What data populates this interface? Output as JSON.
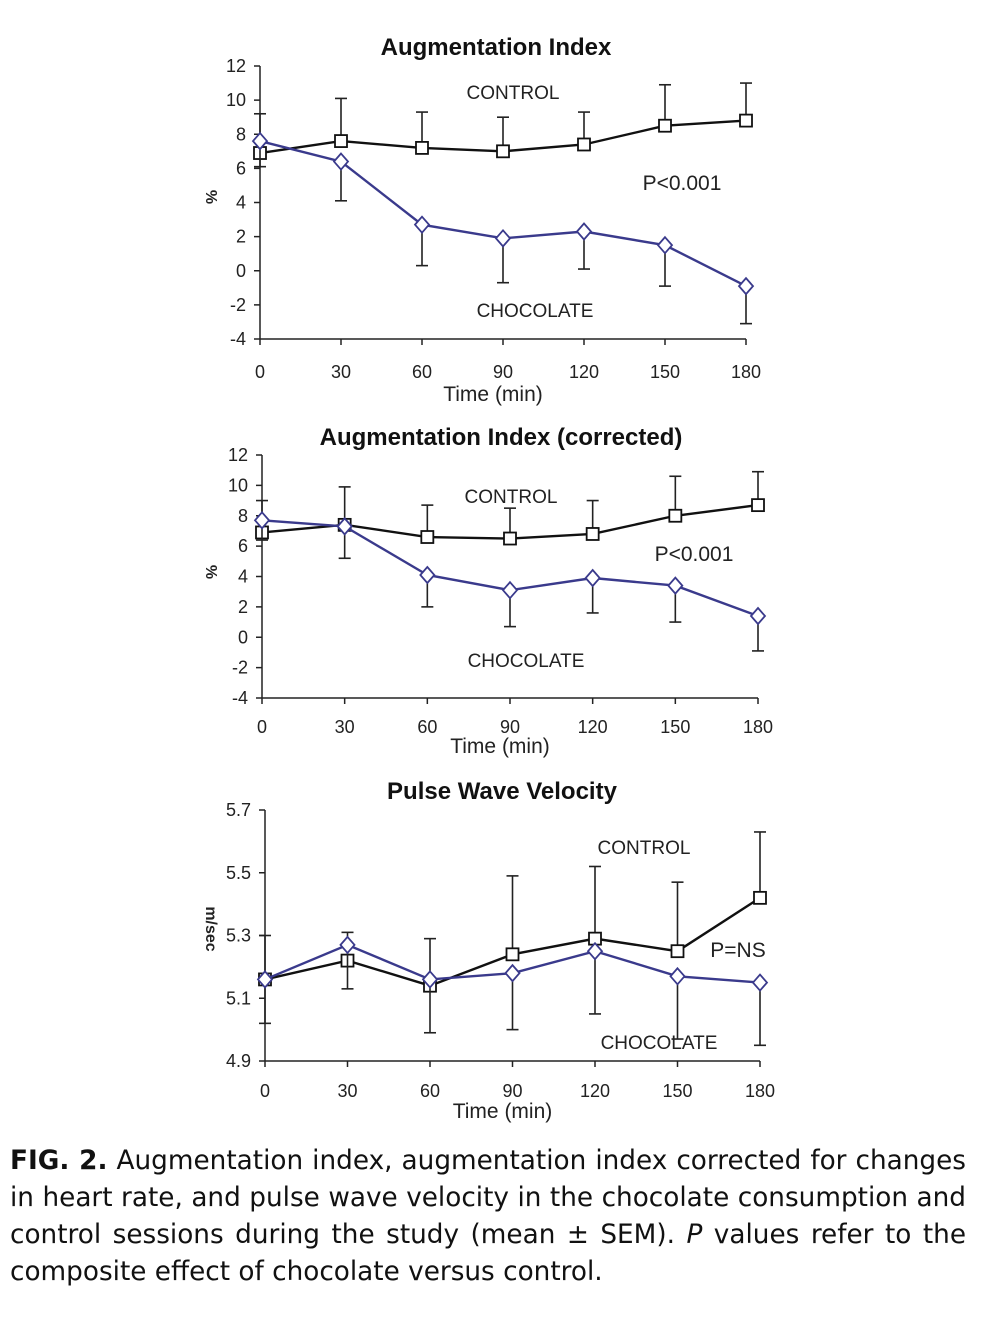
{
  "chart_data": [
    {
      "type": "line",
      "title": "Augmentation Index",
      "xlabel": "Time (min)",
      "ylabel": "%",
      "x": [
        0,
        30,
        60,
        90,
        120,
        150,
        180
      ],
      "xticks": [
        "0",
        "30",
        "60",
        "90",
        "120",
        "150",
        "180"
      ],
      "ylim": [
        -4,
        12
      ],
      "yticks": [
        "12",
        "10",
        "8",
        "6",
        "4",
        "2",
        "0",
        "-2",
        "-4"
      ],
      "series": [
        {
          "name": "CONTROL",
          "color": "#111111",
          "marker": "square",
          "values": [
            6.9,
            7.6,
            7.2,
            7.0,
            7.4,
            8.5,
            8.8
          ],
          "errors": [
            2.3,
            2.5,
            2.1,
            2.0,
            1.9,
            2.4,
            2.2
          ]
        },
        {
          "name": "CHOCOLATE",
          "color": "#3a3a8c",
          "marker": "diamond",
          "values": [
            7.6,
            6.4,
            2.7,
            1.9,
            2.3,
            1.5,
            -0.9
          ],
          "errors": [
            1.5,
            2.3,
            2.4,
            2.6,
            2.2,
            2.4,
            2.2
          ]
        }
      ],
      "annotations": {
        "control_label": "CONTROL",
        "chocolate_label": "CHOCOLATE",
        "p_value": "P<0.001"
      }
    },
    {
      "type": "line",
      "title": "Augmentation Index (corrected)",
      "xlabel": "Time (min)",
      "ylabel": "%",
      "x": [
        0,
        30,
        60,
        90,
        120,
        150,
        180
      ],
      "xticks": [
        "0",
        "30",
        "60",
        "90",
        "120",
        "150",
        "180"
      ],
      "ylim": [
        -4,
        12
      ],
      "yticks": [
        "12",
        "10",
        "8",
        "6",
        "4",
        "2",
        "0",
        "-2",
        "-4"
      ],
      "series": [
        {
          "name": "CONTROL",
          "color": "#111111",
          "marker": "square",
          "values": [
            6.9,
            7.4,
            6.6,
            6.5,
            6.8,
            8.0,
            8.7
          ],
          "errors": [
            2.1,
            2.5,
            2.1,
            2.0,
            2.2,
            2.6,
            2.2
          ]
        },
        {
          "name": "CHOCOLATE",
          "color": "#3a3a8c",
          "marker": "diamond",
          "values": [
            7.7,
            7.3,
            4.1,
            3.1,
            3.9,
            3.4,
            1.4
          ],
          "errors": [
            1.3,
            2.1,
            2.1,
            2.4,
            2.3,
            2.4,
            2.3
          ]
        }
      ],
      "annotations": {
        "control_label": "CONTROL",
        "chocolate_label": "CHOCOLATE",
        "p_value": "P<0.001"
      }
    },
    {
      "type": "line",
      "title": "Pulse Wave Velocity",
      "xlabel": "Time (min)",
      "ylabel": "m/sec",
      "x": [
        0,
        30,
        60,
        90,
        120,
        150,
        180
      ],
      "xticks": [
        "0",
        "30",
        "60",
        "90",
        "120",
        "150",
        "180"
      ],
      "ylim": [
        4.9,
        5.7
      ],
      "yticks": [
        "5.7",
        "5.5",
        "5.3",
        "5.1",
        "4.9"
      ],
      "series": [
        {
          "name": "CONTROL",
          "color": "#111111",
          "marker": "square",
          "values": [
            5.16,
            5.22,
            5.14,
            5.24,
            5.29,
            5.25,
            5.42
          ],
          "errors": [
            0.14,
            0.09,
            0.15,
            0.25,
            0.23,
            0.22,
            0.21
          ]
        },
        {
          "name": "CHOCOLATE",
          "color": "#3a3a8c",
          "marker": "diamond",
          "values": [
            5.16,
            5.27,
            5.16,
            5.18,
            5.25,
            5.17,
            5.15
          ],
          "errors": [
            0.14,
            0.14,
            0.17,
            0.18,
            0.2,
            0.2,
            0.2
          ]
        }
      ],
      "annotations": {
        "control_label": "CONTROL",
        "chocolate_label": "CHOCOLATE",
        "p_value": "P=NS"
      }
    }
  ],
  "caption": {
    "label": "FIG. 2.",
    "text": " Augmentation index, augmentation index corrected for changes in heart rate, and pulse wave velocity in the chocolate consumption and control sessions during the study (mean ± SEM). ",
    "italic": "P",
    "text_end": " values refer to the composite effect of chocolate versus control."
  }
}
